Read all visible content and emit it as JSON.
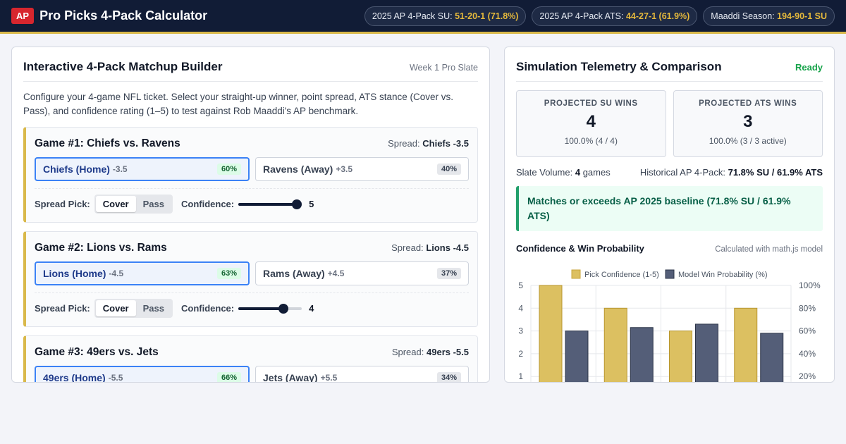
{
  "header": {
    "logo": "AP",
    "title": "Pro Picks 4-Pack Calculator",
    "pills": [
      {
        "label": "2025 AP 4-Pack SU:",
        "value": "51-20-1 (71.8%)"
      },
      {
        "label": "2025 AP 4-Pack ATS:",
        "value": "44-27-1 (61.9%)"
      },
      {
        "label": "Maaddi Season:",
        "value": "194-90-1 SU"
      }
    ]
  },
  "builder": {
    "title": "Interactive 4-Pack Matchup Builder",
    "slate": "Week 1 Pro Slate",
    "intro": "Configure your 4-game NFL ticket. Select your straight-up winner, point spread, ATS stance (Cover vs. Pass), and confidence rating (1–5) to test against Rob Maaddi's AP benchmark.",
    "spread_label": "Spread:",
    "spread_pick_label": "Spread Pick:",
    "cover_label": "Cover",
    "pass_label": "Pass",
    "confidence_label": "Confidence:",
    "games": [
      {
        "title": "Game #1: Chiefs vs. Ravens",
        "spread": "Chiefs -3.5",
        "home": {
          "name": "Chiefs (Home)",
          "line": "-3.5",
          "prob": "60%"
        },
        "away": {
          "name": "Ravens (Away)",
          "line": "+3.5",
          "prob": "40%"
        },
        "confidence": 5
      },
      {
        "title": "Game #2: Lions vs. Rams",
        "spread": "Lions -4.5",
        "home": {
          "name": "Lions (Home)",
          "line": "-4.5",
          "prob": "63%"
        },
        "away": {
          "name": "Rams (Away)",
          "line": "+4.5",
          "prob": "37%"
        },
        "confidence": 4
      },
      {
        "title": "Game #3: 49ers vs. Jets",
        "spread": "49ers -5.5",
        "home": {
          "name": "49ers (Home)",
          "line": "-5.5",
          "prob": "66%"
        },
        "away": {
          "name": "Jets (Away)",
          "line": "+5.5",
          "prob": "34%"
        },
        "confidence": 3
      }
    ]
  },
  "telemetry": {
    "title": "Simulation Telemetry & Comparison",
    "status": "Ready",
    "su": {
      "label": "PROJECTED SU WINS",
      "value": "4",
      "sub": "100.0% (4 / 4)"
    },
    "ats": {
      "label": "PROJECTED ATS WINS",
      "value": "3",
      "sub": "100.0% (3 / 3 active)"
    },
    "volume_label": "Slate Volume:",
    "volume_value": "4",
    "volume_unit": "games",
    "historical_label": "Historical AP 4-Pack:",
    "historical_value": "71.8% SU / 61.9% ATS",
    "alert": "Matches or exceeds AP 2025 baseline (71.8% SU / 61.9% ATS)",
    "chart_title": "Confidence & Win Probability",
    "chart_note": "Calculated with math.js model"
  },
  "colors": {
    "gold": "#dcc061",
    "slate": "#545e78",
    "navy": "#111c36",
    "accent_blue": "#3b82f6",
    "success": "#16a34a"
  },
  "chart_data": {
    "type": "bar",
    "categories": [
      "",
      "",
      "",
      ""
    ],
    "series": [
      {
        "name": "Pick Confidence (1-5)",
        "axis": "left",
        "values": [
          5,
          4,
          3,
          4
        ]
      },
      {
        "name": "Model Win Probability (%)",
        "axis": "right",
        "values": [
          60,
          63,
          66,
          58
        ]
      }
    ],
    "left_ticks": [
      "1",
      "2",
      "3",
      "4",
      "5"
    ],
    "right_ticks": [
      "20%",
      "40%",
      "60%",
      "80%",
      "100%"
    ],
    "ylim_left": [
      0,
      5
    ],
    "ylim_right": [
      0,
      100
    ],
    "grid": true,
    "legend": "top"
  }
}
